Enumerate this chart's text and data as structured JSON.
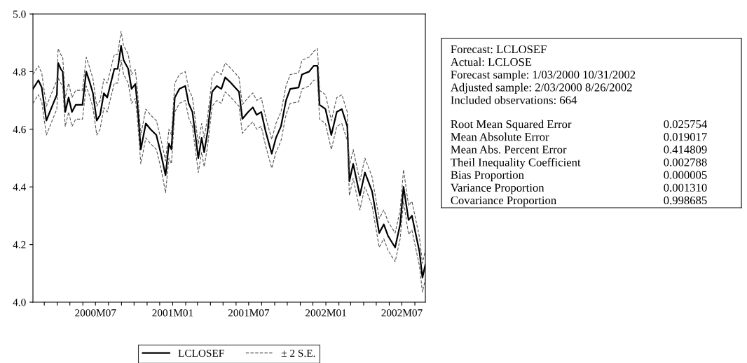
{
  "chart_data": [
    {
      "type": "line",
      "x": [
        "2000-02-03",
        "2000-02-16",
        "2000-02-24",
        "2000-03-06",
        "2000-03-17",
        "2000-03-31",
        "2000-04-03",
        "2000-04-09",
        "2000-04-14",
        "2000-04-20",
        "2000-04-28",
        "2000-05-06",
        "2000-05-15",
        "2000-05-31",
        "2000-06-09",
        "2000-06-17",
        "2000-06-25",
        "2000-07-04",
        "2000-07-12",
        "2000-07-21",
        "2000-07-29",
        "2000-08-15",
        "2000-08-23",
        "2000-08-31",
        "2000-09-06",
        "2000-09-17",
        "2000-09-25",
        "2000-10-04",
        "2000-10-09",
        "2000-10-17",
        "2000-10-29",
        "2000-11-09",
        "2000-11-23",
        "2000-12-04",
        "2000-12-15",
        "2000-12-23",
        "2000-12-29",
        "2001-01-06",
        "2001-01-17",
        "2001-01-31",
        "2001-02-08",
        "2001-02-17",
        "2001-03-03",
        "2001-03-11",
        "2001-03-17",
        "2001-03-25",
        "2001-04-05",
        "2001-04-16",
        "2001-04-27",
        "2001-05-06",
        "2001-05-17",
        "2001-06-08",
        "2001-06-16",
        "2001-06-30",
        "2001-07-11",
        "2001-07-20",
        "2001-07-31",
        "2001-08-10",
        "2001-08-25",
        "2001-09-04",
        "2001-09-16",
        "2001-09-28",
        "2001-10-08",
        "2001-10-28",
        "2001-11-05",
        "2001-11-22",
        "2001-12-03",
        "2001-12-12",
        "2001-12-17",
        "2001-12-31",
        "2002-01-14",
        "2002-01-27",
        "2002-02-08",
        "2002-02-21",
        "2002-02-26",
        "2002-03-07",
        "2002-03-23",
        "2002-04-04",
        "2002-04-21",
        "2002-05-08",
        "2002-05-19",
        "2002-05-29",
        "2002-06-15",
        "2002-06-27",
        "2002-07-05",
        "2002-07-17",
        "2002-07-25",
        "2002-08-12",
        "2002-08-19",
        "2002-08-26"
      ],
      "series": [
        {
          "name": "LCLOSEF",
          "color": "#000000",
          "line_style": "solid",
          "values": [
            4.74,
            4.77,
            4.745,
            4.63,
            4.67,
            4.72,
            4.83,
            4.81,
            4.8,
            4.66,
            4.71,
            4.66,
            4.685,
            4.685,
            4.8,
            4.765,
            4.725,
            4.63,
            4.65,
            4.725,
            4.71,
            4.81,
            4.81,
            4.89,
            4.84,
            4.81,
            4.74,
            4.757,
            4.685,
            4.53,
            4.62,
            4.6,
            4.58,
            4.515,
            4.44,
            4.55,
            4.53,
            4.71,
            4.74,
            4.75,
            4.69,
            4.66,
            4.5,
            4.57,
            4.52,
            4.59,
            4.73,
            4.75,
            4.74,
            4.78,
            4.765,
            4.73,
            4.636,
            4.66,
            4.676,
            4.65,
            4.66,
            4.595,
            4.515,
            4.57,
            4.61,
            4.7,
            4.74,
            4.745,
            4.79,
            4.8,
            4.82,
            4.82,
            4.685,
            4.67,
            4.58,
            4.66,
            4.67,
            4.61,
            4.42,
            4.48,
            4.37,
            4.45,
            4.385,
            4.24,
            4.27,
            4.23,
            4.19,
            4.27,
            4.4,
            4.285,
            4.3,
            4.175,
            4.085,
            4.13
          ]
        },
        {
          "name": "± 2 S.E.",
          "color": "#555555",
          "line_style": "dashed",
          "values": [
            4.79,
            4.82,
            4.795,
            4.68,
            4.72,
            4.77,
            4.88,
            4.86,
            4.85,
            4.71,
            4.76,
            4.71,
            4.735,
            4.735,
            4.85,
            4.815,
            4.775,
            4.68,
            4.7,
            4.775,
            4.76,
            4.86,
            4.86,
            4.94,
            4.89,
            4.86,
            4.79,
            4.807,
            4.735,
            4.58,
            4.67,
            4.65,
            4.63,
            4.565,
            4.49,
            4.6,
            4.58,
            4.76,
            4.79,
            4.8,
            4.74,
            4.71,
            4.55,
            4.62,
            4.57,
            4.64,
            4.78,
            4.8,
            4.79,
            4.83,
            4.815,
            4.78,
            4.686,
            4.71,
            4.726,
            4.7,
            4.71,
            4.645,
            4.565,
            4.62,
            4.66,
            4.75,
            4.79,
            4.795,
            4.84,
            4.85,
            4.87,
            4.88,
            4.735,
            4.72,
            4.63,
            4.71,
            4.72,
            4.66,
            4.47,
            4.53,
            4.42,
            4.5,
            4.435,
            4.29,
            4.32,
            4.28,
            4.24,
            4.32,
            4.46,
            4.335,
            4.35,
            4.225,
            4.135,
            4.18
          ]
        },
        {
          "color": "#555555",
          "line_style": "dashed",
          "values": [
            4.69,
            4.72,
            4.695,
            4.58,
            4.62,
            4.67,
            4.78,
            4.76,
            4.75,
            4.61,
            4.66,
            4.61,
            4.635,
            4.635,
            4.75,
            4.715,
            4.675,
            4.58,
            4.6,
            4.675,
            4.66,
            4.76,
            4.76,
            4.84,
            4.79,
            4.76,
            4.69,
            4.707,
            4.635,
            4.48,
            4.57,
            4.55,
            4.53,
            4.465,
            4.38,
            4.5,
            4.48,
            4.66,
            4.69,
            4.7,
            4.64,
            4.61,
            4.45,
            4.52,
            4.47,
            4.54,
            4.68,
            4.7,
            4.69,
            4.73,
            4.715,
            4.68,
            4.586,
            4.61,
            4.626,
            4.6,
            4.61,
            4.545,
            4.465,
            4.52,
            4.56,
            4.65,
            4.69,
            4.695,
            4.74,
            4.75,
            4.77,
            4.77,
            4.635,
            4.62,
            4.53,
            4.61,
            4.62,
            4.56,
            4.37,
            4.43,
            4.32,
            4.4,
            4.335,
            4.19,
            4.22,
            4.18,
            4.14,
            4.22,
            4.35,
            4.235,
            4.25,
            4.125,
            4.035,
            4.08
          ]
        }
      ],
      "xlim": [
        "2000-02-03",
        "2002-08-26"
      ],
      "xticks": [
        {
          "value": "2000-03-01",
          "label": null
        },
        {
          "value": "2000-04-01",
          "label": null
        },
        {
          "value": "2000-05-01",
          "label": null
        },
        {
          "value": "2000-06-01",
          "label": null
        },
        {
          "value": "2000-07-01",
          "label": "2000M07"
        },
        {
          "value": "2000-08-01",
          "label": null
        },
        {
          "value": "2000-09-01",
          "label": null
        },
        {
          "value": "2000-10-01",
          "label": null
        },
        {
          "value": "2000-11-01",
          "label": null
        },
        {
          "value": "2000-12-01",
          "label": null
        },
        {
          "value": "2001-01-01",
          "label": "2001M01"
        },
        {
          "value": "2001-02-01",
          "label": null
        },
        {
          "value": "2001-03-01",
          "label": null
        },
        {
          "value": "2001-04-01",
          "label": null
        },
        {
          "value": "2001-05-01",
          "label": null
        },
        {
          "value": "2001-06-01",
          "label": null
        },
        {
          "value": "2001-07-01",
          "label": "2001M07"
        },
        {
          "value": "2001-08-01",
          "label": null
        },
        {
          "value": "2001-09-01",
          "label": null
        },
        {
          "value": "2001-10-01",
          "label": null
        },
        {
          "value": "2001-11-01",
          "label": null
        },
        {
          "value": "2001-12-01",
          "label": null
        },
        {
          "value": "2002-01-01",
          "label": "2002M01"
        },
        {
          "value": "2002-02-01",
          "label": null
        },
        {
          "value": "2002-03-01",
          "label": null
        },
        {
          "value": "2002-04-01",
          "label": null
        },
        {
          "value": "2002-05-01",
          "label": null
        },
        {
          "value": "2002-06-01",
          "label": null
        },
        {
          "value": "2002-07-01",
          "label": "2002M07"
        },
        {
          "value": "2002-08-01",
          "label": null
        }
      ],
      "ylim": [
        4.0,
        5.0
      ],
      "yticks": [
        {
          "value": 4.0,
          "label": "4.0"
        },
        4.2,
        4.4,
        4.6,
        4.8,
        {
          "value": 5.0,
          "label": "5.0"
        }
      ],
      "grid": false,
      "legend": "bottom",
      "marker": "none"
    },
    {
      "type": "other",
      "annotations": [
        "Forecast: LCLOSEF",
        "Actual: LCLOSE",
        "Forecast sample: 1/03/2000 10/31/2002",
        "Adjusted sample: 2/03/2000 8/26/2002",
        "Included observations: 664"
      ],
      "categories": [
        "Root Mean Squared Error",
        "Mean Absolute Error",
        "Mean Abs. Percent Error",
        "Theil Inequality Coefficient",
        "Bias Proportion",
        "Variance Proportion",
        "Covariance Proportion"
      ],
      "value_labels": [
        "0.025754",
        "0.019017",
        "0.414809",
        "0.002788",
        "0.000005",
        "0.001310",
        "0.998685"
      ]
    }
  ]
}
